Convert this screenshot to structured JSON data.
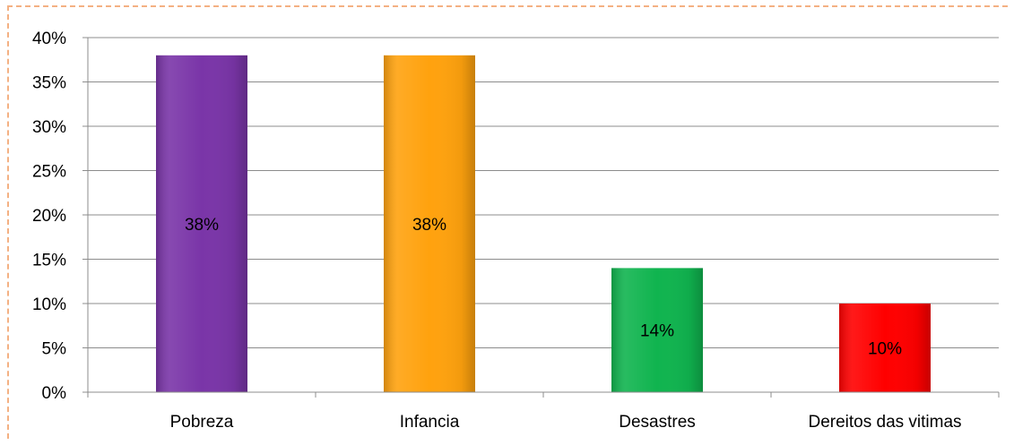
{
  "chart_data": {
    "type": "bar",
    "categories": [
      "Pobreza",
      "Infancia",
      "Desastres",
      "Dereitos das vitimas"
    ],
    "values": [
      38,
      38,
      14,
      10
    ],
    "data_labels": [
      "38%",
      "38%",
      "14%",
      "10%"
    ],
    "colors": [
      "#7a35a8",
      "#ffa20e",
      "#10b44f",
      "#ff0000"
    ],
    "ylim": [
      0,
      40
    ],
    "yticks": [
      0,
      5,
      10,
      15,
      20,
      25,
      30,
      35,
      40
    ],
    "ytick_labels": [
      "0%",
      "5%",
      "10%",
      "15%",
      "20%",
      "25%",
      "30%",
      "35%",
      "40%"
    ],
    "grid": true,
    "legend": "none",
    "title": "",
    "xlabel": "",
    "ylabel": ""
  }
}
